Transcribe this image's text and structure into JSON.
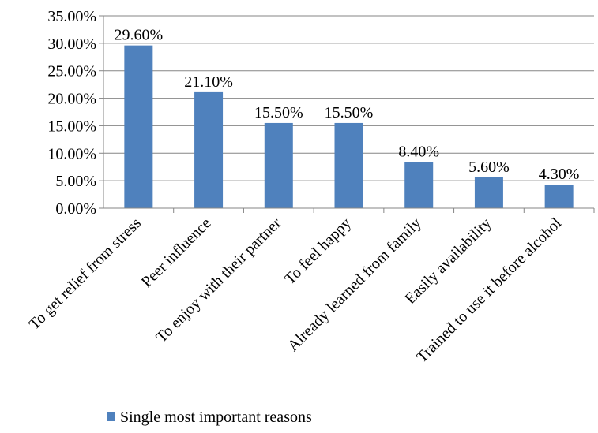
{
  "chart_data": {
    "type": "bar",
    "categories": [
      "To get relief from stress",
      "Peer influence",
      "To enjoy with their partner",
      "To feel happy",
      "Already learned from family",
      "Easily availability",
      "Trained to use it before alcohol"
    ],
    "series": [
      {
        "name": "Single most important reasons",
        "values": [
          29.6,
          21.1,
          15.5,
          15.5,
          8.4,
          5.6,
          4.3
        ],
        "data_labels": [
          "29.60%",
          "21.10%",
          "15.50%",
          "15.50%",
          "8.40%",
          "5.60%",
          "4.30%"
        ],
        "color": "#4f81bd"
      }
    ],
    "y_ticks": [
      "0.00%",
      "5.00%",
      "10.00%",
      "15.00%",
      "20.00%",
      "25.00%",
      "30.00%",
      "35.00%"
    ],
    "ylim": [
      0,
      35
    ],
    "grid": true,
    "legend_position": "bottom",
    "title": "",
    "xlabel": "",
    "ylabel": ""
  }
}
